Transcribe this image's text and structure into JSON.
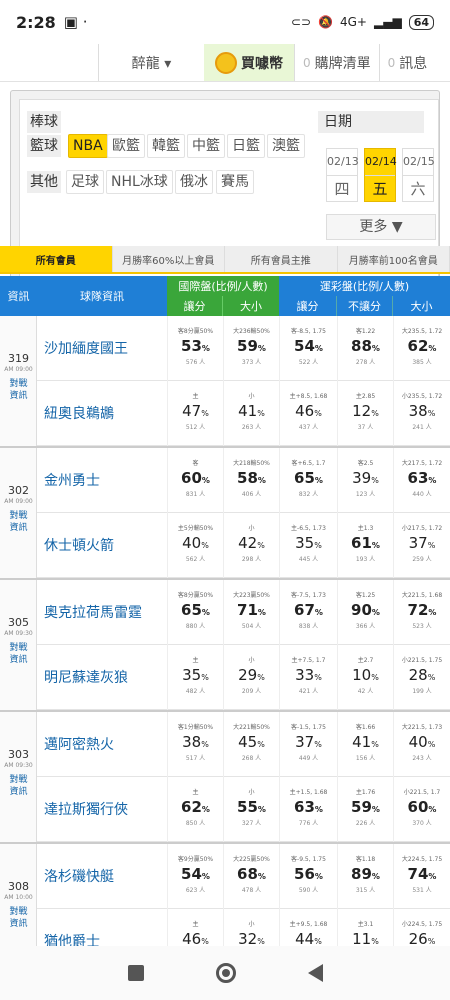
{
  "status": {
    "time": "2:28",
    "signal": "4G+",
    "battery": "64"
  },
  "topnav": {
    "user": "醉龍 ▾",
    "coins": "買噱幣",
    "coin_icon": "coin-icon",
    "list_count": "0",
    "list": "購牌清單",
    "msg_count": "0",
    "msg": "訊息"
  },
  "filter": {
    "baseball": "棒球",
    "basketball": "籃球",
    "other": "其他",
    "basketball_leagues": [
      "NBA",
      "歐籃",
      "韓籃",
      "中籃",
      "日籃",
      "澳籃"
    ],
    "other_leagues": [
      "足球",
      "NHL冰球",
      "俄冰",
      "賽馬"
    ],
    "date_label": "日期",
    "days": [
      {
        "d": "02/13",
        "w": "四"
      },
      {
        "d": "02/14",
        "w": "五"
      },
      {
        "d": "02/15",
        "w": "六"
      }
    ],
    "more": "更多 ▼"
  },
  "tabs": [
    "所有會員",
    "月勝率60%以上會員",
    "所有會員主推",
    "月勝率前100名會員"
  ],
  "thead": {
    "info": "資訊",
    "team": "球隊資訊",
    "intl": "國際盤(比例/人數)",
    "lottery": "運彩盤(比例/人數)",
    "spread": "讓分",
    "total": "大小",
    "spread2": "讓分",
    "nospread": "不讓分",
    "total2": "大小"
  },
  "colors": {
    "accent": "#ffd400",
    "intl_header": "#3aa63a",
    "lottery_header": "#1f7fd6",
    "team": "#1565a8"
  },
  "games": [
    {
      "num": "319",
      "time": "AM 09:00",
      "vs": "對戰\n資訊",
      "rows": [
        {
          "team": "沙加緬度國王",
          "cells": [
            {
              "l": "客8分贏50%",
              "p": "53",
              "c": "576 人",
              "b": true
            },
            {
              "l": "大236輸50%",
              "p": "59",
              "c": "373 人",
              "b": true
            },
            {
              "l": "客-8.5, 1.75",
              "p": "54",
              "c": "522 人",
              "b": true
            },
            {
              "l": "客1.22",
              "p": "88",
              "c": "278 人",
              "b": true
            },
            {
              "l": "大235.5, 1.72",
              "p": "62",
              "c": "385 人",
              "b": true
            }
          ]
        },
        {
          "team": "紐奧良鵜鶘",
          "cells": [
            {
              "l": "主",
              "p": "47",
              "c": "512 人"
            },
            {
              "l": "小",
              "p": "41",
              "c": "263 人"
            },
            {
              "l": "主+8.5, 1.68",
              "p": "46",
              "c": "437 人"
            },
            {
              "l": "主2.85",
              "p": "12",
              "c": "37 人"
            },
            {
              "l": "小235.5, 1.72",
              "p": "38",
              "c": "241 人"
            }
          ]
        }
      ]
    },
    {
      "num": "302",
      "time": "AM 09:00",
      "vs": "對戰\n資訊",
      "rows": [
        {
          "team": "金州勇士",
          "cells": [
            {
              "l": "客",
              "p": "60",
              "c": "831 人",
              "b": true
            },
            {
              "l": "大218輸50%",
              "p": "58",
              "c": "406 人",
              "b": true
            },
            {
              "l": "客+6.5, 1.7",
              "p": "65",
              "c": "832 人",
              "b": true
            },
            {
              "l": "客2.5",
              "p": "39",
              "c": "123 人"
            },
            {
              "l": "大217.5, 1.72",
              "p": "63",
              "c": "440 人",
              "b": true
            }
          ]
        },
        {
          "team": "休士頓火箭",
          "cells": [
            {
              "l": "主5分輸50%",
              "p": "40",
              "c": "562 人"
            },
            {
              "l": "小",
              "p": "42",
              "c": "298 人"
            },
            {
              "l": "主-6.5, 1.73",
              "p": "35",
              "c": "445 人"
            },
            {
              "l": "主1.3",
              "p": "61",
              "c": "193 人",
              "b": true
            },
            {
              "l": "小217.5, 1.72",
              "p": "37",
              "c": "259 人"
            }
          ]
        }
      ]
    },
    {
      "num": "305",
      "time": "AM 09:30",
      "vs": "對戰\n資訊",
      "rows": [
        {
          "team": "奧克拉荷馬雷霆",
          "cells": [
            {
              "l": "客8分贏50%",
              "p": "65",
              "c": "880 人",
              "b": true
            },
            {
              "l": "大223贏50%",
              "p": "71",
              "c": "504 人",
              "b": true
            },
            {
              "l": "客-7.5, 1.73",
              "p": "67",
              "c": "838 人",
              "b": true
            },
            {
              "l": "客1.25",
              "p": "90",
              "c": "366 人",
              "b": true
            },
            {
              "l": "大221.5, 1.68",
              "p": "72",
              "c": "523 人",
              "b": true
            }
          ]
        },
        {
          "team": "明尼蘇達灰狼",
          "cells": [
            {
              "l": "主",
              "p": "35",
              "c": "482 人"
            },
            {
              "l": "小",
              "p": "29",
              "c": "209 人"
            },
            {
              "l": "主+7.5, 1.7",
              "p": "33",
              "c": "421 人"
            },
            {
              "l": "主2.7",
              "p": "10",
              "c": "42 人"
            },
            {
              "l": "小221.5, 1.75",
              "p": "28",
              "c": "199 人"
            }
          ]
        }
      ]
    },
    {
      "num": "303",
      "time": "AM 09:30",
      "vs": "對戰\n資訊",
      "rows": [
        {
          "team": "邁阿密熱火",
          "cells": [
            {
              "l": "客1分輸50%",
              "p": "38",
              "c": "517 人"
            },
            {
              "l": "大221輸50%",
              "p": "45",
              "c": "268 人"
            },
            {
              "l": "客-1.5, 1.75",
              "p": "37",
              "c": "449 人"
            },
            {
              "l": "客1.66",
              "p": "41",
              "c": "156 人"
            },
            {
              "l": "大221.5, 1.73",
              "p": "40",
              "c": "243 人"
            }
          ]
        },
        {
          "team": "達拉斯獨行俠",
          "cells": [
            {
              "l": "主",
              "p": "62",
              "c": "850 人",
              "b": true
            },
            {
              "l": "小",
              "p": "55",
              "c": "327 人",
              "b": true
            },
            {
              "l": "主+1.5, 1.68",
              "p": "63",
              "c": "776 人",
              "b": true
            },
            {
              "l": "主1.76",
              "p": "59",
              "c": "226 人",
              "b": true
            },
            {
              "l": "小221.5, 1.7",
              "p": "60",
              "c": "370 人",
              "b": true
            }
          ]
        }
      ]
    },
    {
      "num": "308",
      "time": "AM 10:00",
      "vs": "對戰\n資訊",
      "rows": [
        {
          "team": "洛杉磯快艇",
          "cells": [
            {
              "l": "客9分贏50%",
              "p": "54",
              "c": "623 人",
              "b": true
            },
            {
              "l": "大225贏50%",
              "p": "68",
              "c": "478 人",
              "b": true
            },
            {
              "l": "客-9.5, 1.75",
              "p": "56",
              "c": "590 人",
              "b": true
            },
            {
              "l": "客1.18",
              "p": "89",
              "c": "315 人",
              "b": true
            },
            {
              "l": "大224.5, 1.75",
              "p": "74",
              "c": "531 人",
              "b": true
            }
          ]
        },
        {
          "team": "猶他爵士",
          "cells": [
            {
              "l": "主",
              "p": "46",
              "c": "",
              "b": false
            },
            {
              "l": "小",
              "p": "32",
              "c": ""
            },
            {
              "l": "主+9.5, 1.68",
              "p": "44",
              "c": ""
            },
            {
              "l": "主3.1",
              "p": "11",
              "c": ""
            },
            {
              "l": "小224.5, 1.75",
              "p": "26",
              "c": ""
            }
          ]
        }
      ]
    }
  ]
}
